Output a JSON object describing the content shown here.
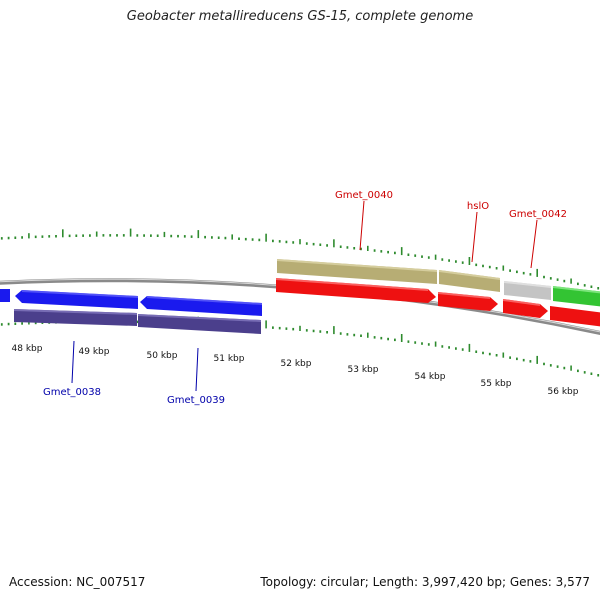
{
  "title": "Geobacter metallireducens GS-15, complete genome",
  "accession": "Accession: NC_007517",
  "summary": "Topology: circular; Length: 3,997,420 bp; Genes: 3,577",
  "colors": {
    "backbone": "#8a8a8a",
    "tick": "#2e8b2e",
    "gene_label_top": "#cc0000",
    "gene_label_bottom": "#0000aa",
    "gene_blue": "#1a1aee",
    "gene_purple": "#4b3f8c",
    "gene_khaki": "#b7ad74",
    "gene_red": "#ee1111",
    "gene_gray": "#c4c4c4",
    "gene_green": "#33c433"
  },
  "ruler": {
    "labels": [
      "48 kbp",
      "49 kbp",
      "50 kbp",
      "51 kbp",
      "52 kbp",
      "53 kbp",
      "54 kbp",
      "55 kbp",
      "56 kbp"
    ]
  },
  "gene_labels": {
    "top": [
      "Gmet_0040",
      "hslO",
      "Gmet_0042"
    ],
    "bottom": [
      "Gmet_0038",
      "Gmet_0039"
    ]
  }
}
